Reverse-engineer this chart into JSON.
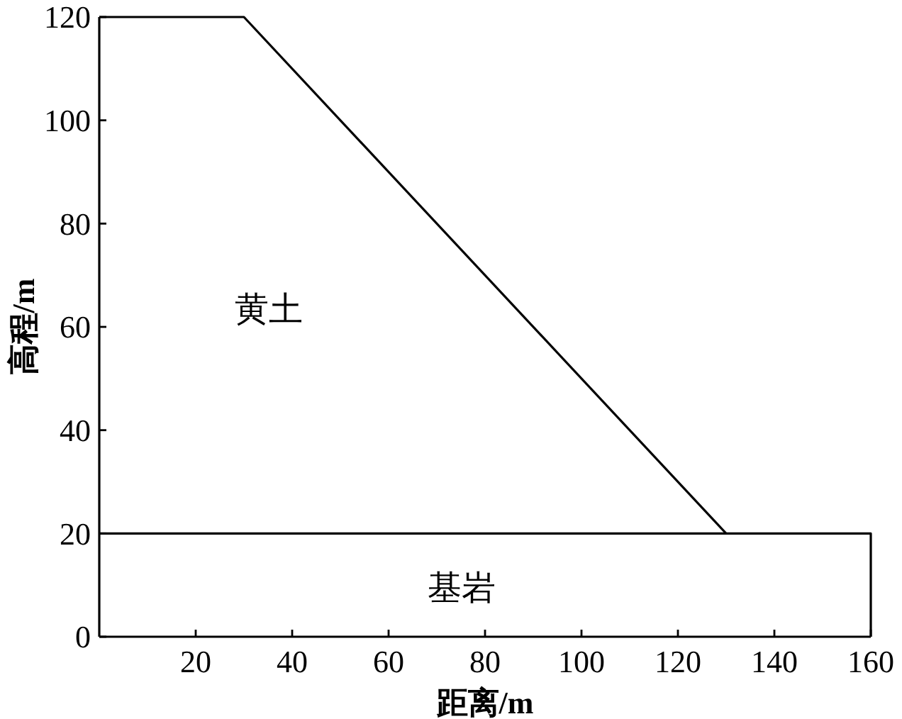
{
  "chart_data": {
    "type": "line",
    "xlabel": "距离/m",
    "ylabel": "高程/m",
    "xlim": [
      0,
      160
    ],
    "xticks": [
      20,
      40,
      60,
      80,
      100,
      120,
      140,
      160
    ],
    "ylim": [
      0,
      120
    ],
    "yticks": [
      0,
      20,
      40,
      60,
      80,
      100,
      120
    ],
    "grid": false,
    "marker": "none",
    "line_style": "solid",
    "series": [
      {
        "color": "#000000",
        "x": [
          0,
          30,
          130
        ],
        "values": [
          120,
          120,
          20
        ]
      },
      {
        "color": "#000000",
        "x": [
          0,
          160,
          160
        ],
        "values": [
          20,
          20,
          0
        ]
      }
    ],
    "annotations": [
      "黄土",
      "基岩"
    ]
  }
}
